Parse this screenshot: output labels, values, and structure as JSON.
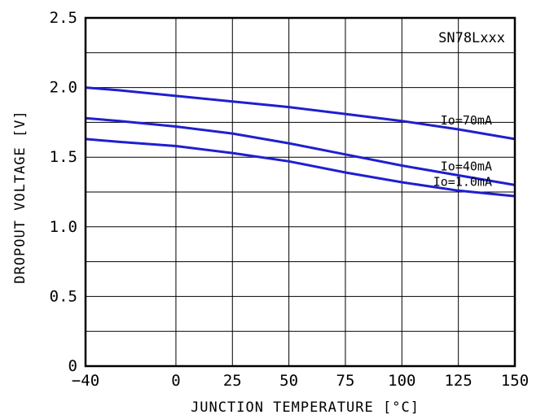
{
  "chart_data": {
    "type": "line",
    "title": "",
    "model_label": "SN78Lxxx",
    "xlabel": "JUNCTION TEMPERATURE [°C]",
    "ylabel": "DROPOUT VOLTAGE [V]",
    "xlim": [
      -40,
      150
    ],
    "ylim": [
      0,
      2.5
    ],
    "x_ticks": [
      -40,
      0,
      25,
      50,
      75,
      100,
      125,
      150
    ],
    "x_tick_labels": [
      "−40",
      "0",
      "25",
      "50",
      "75",
      "100",
      "125",
      "150"
    ],
    "y_ticks": [
      0,
      0.5,
      1.0,
      1.5,
      2.0,
      2.5
    ],
    "y_tick_labels": [
      "0",
      "0.5",
      "1.0",
      "1.5",
      "2.0",
      "2.5"
    ],
    "grid": true,
    "line_color": "#1f1fd0",
    "series": [
      {
        "name": "Io=70mA",
        "x": [
          -40,
          -25,
          0,
          25,
          50,
          75,
          100,
          125,
          150
        ],
        "y": [
          2.0,
          1.98,
          1.94,
          1.9,
          1.86,
          1.81,
          1.76,
          1.7,
          1.63
        ]
      },
      {
        "name": "Io=40mA",
        "x": [
          -40,
          -25,
          0,
          25,
          50,
          75,
          100,
          125,
          150
        ],
        "y": [
          1.78,
          1.76,
          1.72,
          1.67,
          1.6,
          1.52,
          1.44,
          1.37,
          1.3
        ]
      },
      {
        "name": "Io=1.0mA",
        "x": [
          -40,
          -25,
          0,
          25,
          50,
          75,
          100,
          125,
          150
        ],
        "y": [
          1.63,
          1.61,
          1.58,
          1.53,
          1.47,
          1.39,
          1.32,
          1.26,
          1.22
        ]
      }
    ]
  }
}
